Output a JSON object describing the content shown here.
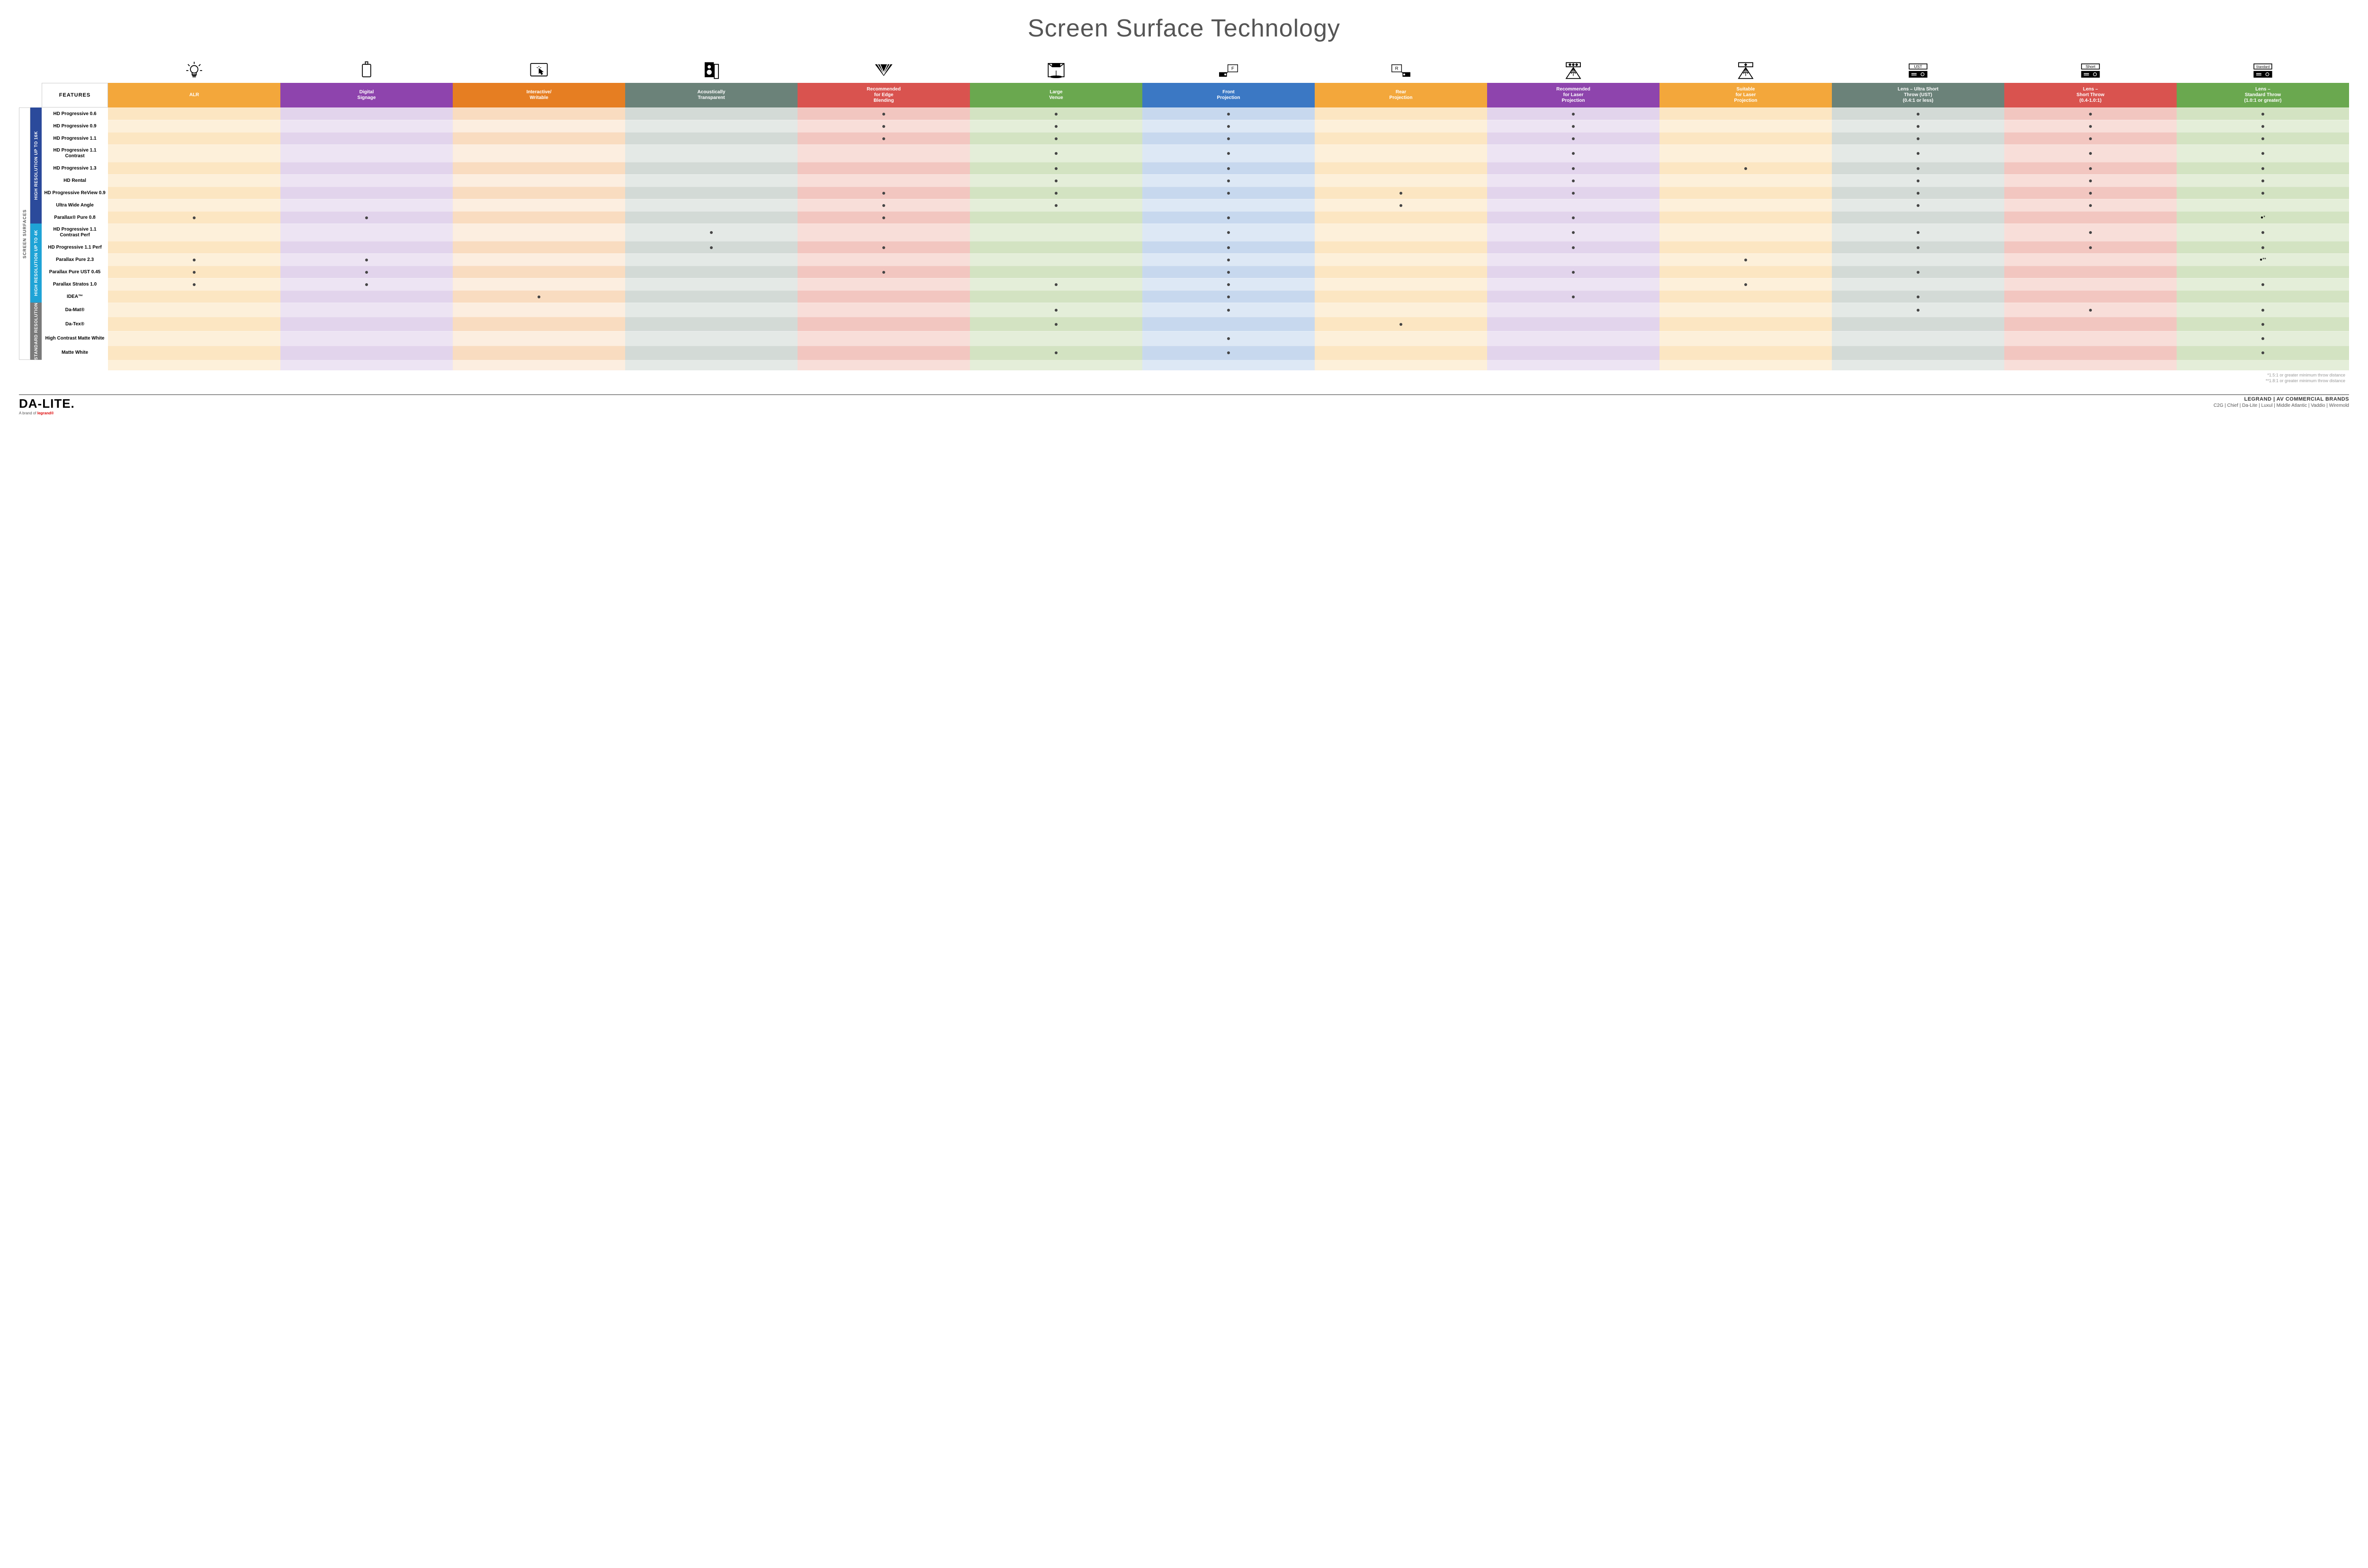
{
  "title": "Screen Surface Technology",
  "featuresLabel": "FEATURES",
  "outerLabel": "SCREEN SURFACES",
  "colors": {
    "headers": [
      "#f3a73b",
      "#8e44ad",
      "#e67e22",
      "#6b8279",
      "#d9534f",
      "#6aa84f",
      "#3b78c4",
      "#f3a73b",
      "#8e44ad",
      "#f3a73b",
      "#6b8279",
      "#d9534f",
      "#6aa84f"
    ],
    "lightA": [
      "#fce6c2",
      "#e2d4ec",
      "#f9dcc0",
      "#d3dad6",
      "#f2c6c0",
      "#d3e3c2",
      "#c7d8ee",
      "#fce6c2",
      "#e2d4ec",
      "#fce6c2",
      "#d3dad6",
      "#f2c6c0",
      "#d3e3c2"
    ],
    "lightB": [
      "#fdf0da",
      "#ede4f3",
      "#fceee0",
      "#e4e9e6",
      "#f8ded9",
      "#e4eed9",
      "#dde8f5",
      "#fdf0da",
      "#ede4f3",
      "#fdf0da",
      "#e4e9e6",
      "#f8ded9",
      "#e4eed9"
    ],
    "group16k": "#2b4a9b",
    "group4k": "#1fa3d6",
    "groupStd": "#7a7a7a"
  },
  "columns": [
    {
      "l1": "ALR"
    },
    {
      "l1": "Digital",
      "l2": "Signage"
    },
    {
      "l1": "Interactive/",
      "l2": "Writable"
    },
    {
      "l1": "Acoustically",
      "l2": "Transparent"
    },
    {
      "l1": "Recommended",
      "l2": "for Edge",
      "l3": "Blending"
    },
    {
      "l1": "Large",
      "l2": "Venue"
    },
    {
      "l1": "Front",
      "l2": "Projection"
    },
    {
      "l1": "Rear",
      "l2": "Projection"
    },
    {
      "l1": "Recommended",
      "l2": "for Laser",
      "l3": "Projection"
    },
    {
      "l1": "Suitable",
      "l2": "for Laser",
      "l3": "Projection"
    },
    {
      "l1": "Lens – Ultra Short",
      "l2": "Throw (UST)",
      "l3": "(0.4:1 or less)"
    },
    {
      "l1": "Lens –",
      "l2": "Short Throw",
      "l3": "(0.4-1.0:1)"
    },
    {
      "l1": "Lens –",
      "l2": "Standard Throw",
      "l3": "(1.0:1 or greater)"
    }
  ],
  "groups": [
    {
      "key": "g16k",
      "label": "HIGH RESOLUTION UP TO 16K",
      "color": "group16k",
      "rows": [
        {
          "name": "HD Progressive 0.6",
          "dots": [
            0,
            0,
            0,
            0,
            1,
            1,
            1,
            0,
            1,
            0,
            1,
            1,
            1
          ]
        },
        {
          "name": "HD Progressive 0.9",
          "dots": [
            0,
            0,
            0,
            0,
            1,
            1,
            1,
            0,
            1,
            0,
            1,
            1,
            1
          ]
        },
        {
          "name": "HD Progressive 1.1",
          "dots": [
            0,
            0,
            0,
            0,
            1,
            1,
            1,
            0,
            1,
            0,
            1,
            1,
            1
          ]
        },
        {
          "name": "HD Progressive 1.1 Contrast",
          "dots": [
            0,
            0,
            0,
            0,
            0,
            1,
            1,
            0,
            1,
            0,
            1,
            1,
            1
          ]
        },
        {
          "name": "HD Progressive 1.3",
          "dots": [
            0,
            0,
            0,
            0,
            0,
            1,
            1,
            0,
            1,
            1,
            1,
            1,
            1
          ]
        },
        {
          "name": "HD Rental",
          "dots": [
            0,
            0,
            0,
            0,
            0,
            1,
            1,
            0,
            1,
            0,
            1,
            1,
            1
          ]
        },
        {
          "name": "HD Progressive ReView 0.9",
          "dots": [
            0,
            0,
            0,
            0,
            1,
            1,
            1,
            1,
            1,
            0,
            1,
            1,
            1
          ]
        },
        {
          "name": "Ultra Wide Angle",
          "dots": [
            0,
            0,
            0,
            0,
            1,
            1,
            0,
            1,
            0,
            0,
            1,
            1,
            0
          ]
        },
        {
          "name": "Parallax® Pure 0.8",
          "dots": [
            1,
            1,
            0,
            0,
            1,
            0,
            1,
            0,
            1,
            0,
            0,
            0,
            "●*"
          ]
        }
      ]
    },
    {
      "key": "g4k",
      "label": "HIGH RESOLUTION UP TO 4K",
      "color": "group4k",
      "rows": [
        {
          "name": "HD Progressive 1.1 Contrast Perf",
          "dots": [
            0,
            0,
            0,
            1,
            0,
            0,
            1,
            0,
            1,
            0,
            1,
            1,
            1
          ]
        },
        {
          "name": "HD Progressive 1.1 Perf",
          "dots": [
            0,
            0,
            0,
            1,
            1,
            0,
            1,
            0,
            1,
            0,
            1,
            1,
            1
          ]
        },
        {
          "name": "Parallax Pure 2.3",
          "dots": [
            1,
            1,
            0,
            0,
            0,
            0,
            1,
            0,
            0,
            1,
            0,
            0,
            "●**"
          ]
        },
        {
          "name": "Parallax Pure UST 0.45",
          "dots": [
            1,
            1,
            0,
            0,
            1,
            0,
            1,
            0,
            1,
            0,
            1,
            0,
            0
          ]
        },
        {
          "name": "Parallax Stratos 1.0",
          "dots": [
            1,
            1,
            0,
            0,
            0,
            1,
            1,
            0,
            0,
            1,
            0,
            0,
            1
          ]
        },
        {
          "name": "IDEA™",
          "dots": [
            0,
            0,
            1,
            0,
            0,
            0,
            1,
            0,
            1,
            0,
            1,
            0,
            0
          ]
        }
      ]
    },
    {
      "key": "gstd",
      "label": "STANDARD RESOLUTION",
      "color": "groupStd",
      "rows": [
        {
          "name": "Da-Mat®",
          "dots": [
            0,
            0,
            0,
            0,
            0,
            1,
            1,
            0,
            0,
            0,
            1,
            1,
            1
          ]
        },
        {
          "name": "Da-Tex®",
          "dots": [
            0,
            0,
            0,
            0,
            0,
            1,
            0,
            1,
            0,
            0,
            0,
            0,
            1
          ]
        },
        {
          "name": "High Contrast Matte White",
          "dots": [
            0,
            0,
            0,
            0,
            0,
            0,
            1,
            0,
            0,
            0,
            0,
            0,
            1
          ]
        },
        {
          "name": "Matte White",
          "dots": [
            0,
            0,
            0,
            0,
            0,
            1,
            1,
            0,
            0,
            0,
            0,
            0,
            1
          ]
        }
      ]
    }
  ],
  "footnotes": [
    "*1.5:1 or greater minimum throw distance",
    "**1.8:1 or greater minimum throw distance"
  ],
  "footer": {
    "logo": "DA-LITE.",
    "logoSub": "A brand of",
    "logoSubBrand": "legrand®",
    "brandsTitle": "LEGRAND | AV COMMERCIAL BRANDS",
    "brandsList": "C2G  |  Chief  |  Da-Lite  |  Luxul  |  Middle Atlantic  |  Vaddio  |  Wiremold"
  },
  "icons": [
    "bulb",
    "signage",
    "touch",
    "speaker",
    "diffuse",
    "venue",
    "front",
    "rear",
    "laser-rec",
    "laser-suit",
    "ust",
    "short",
    "standard"
  ]
}
